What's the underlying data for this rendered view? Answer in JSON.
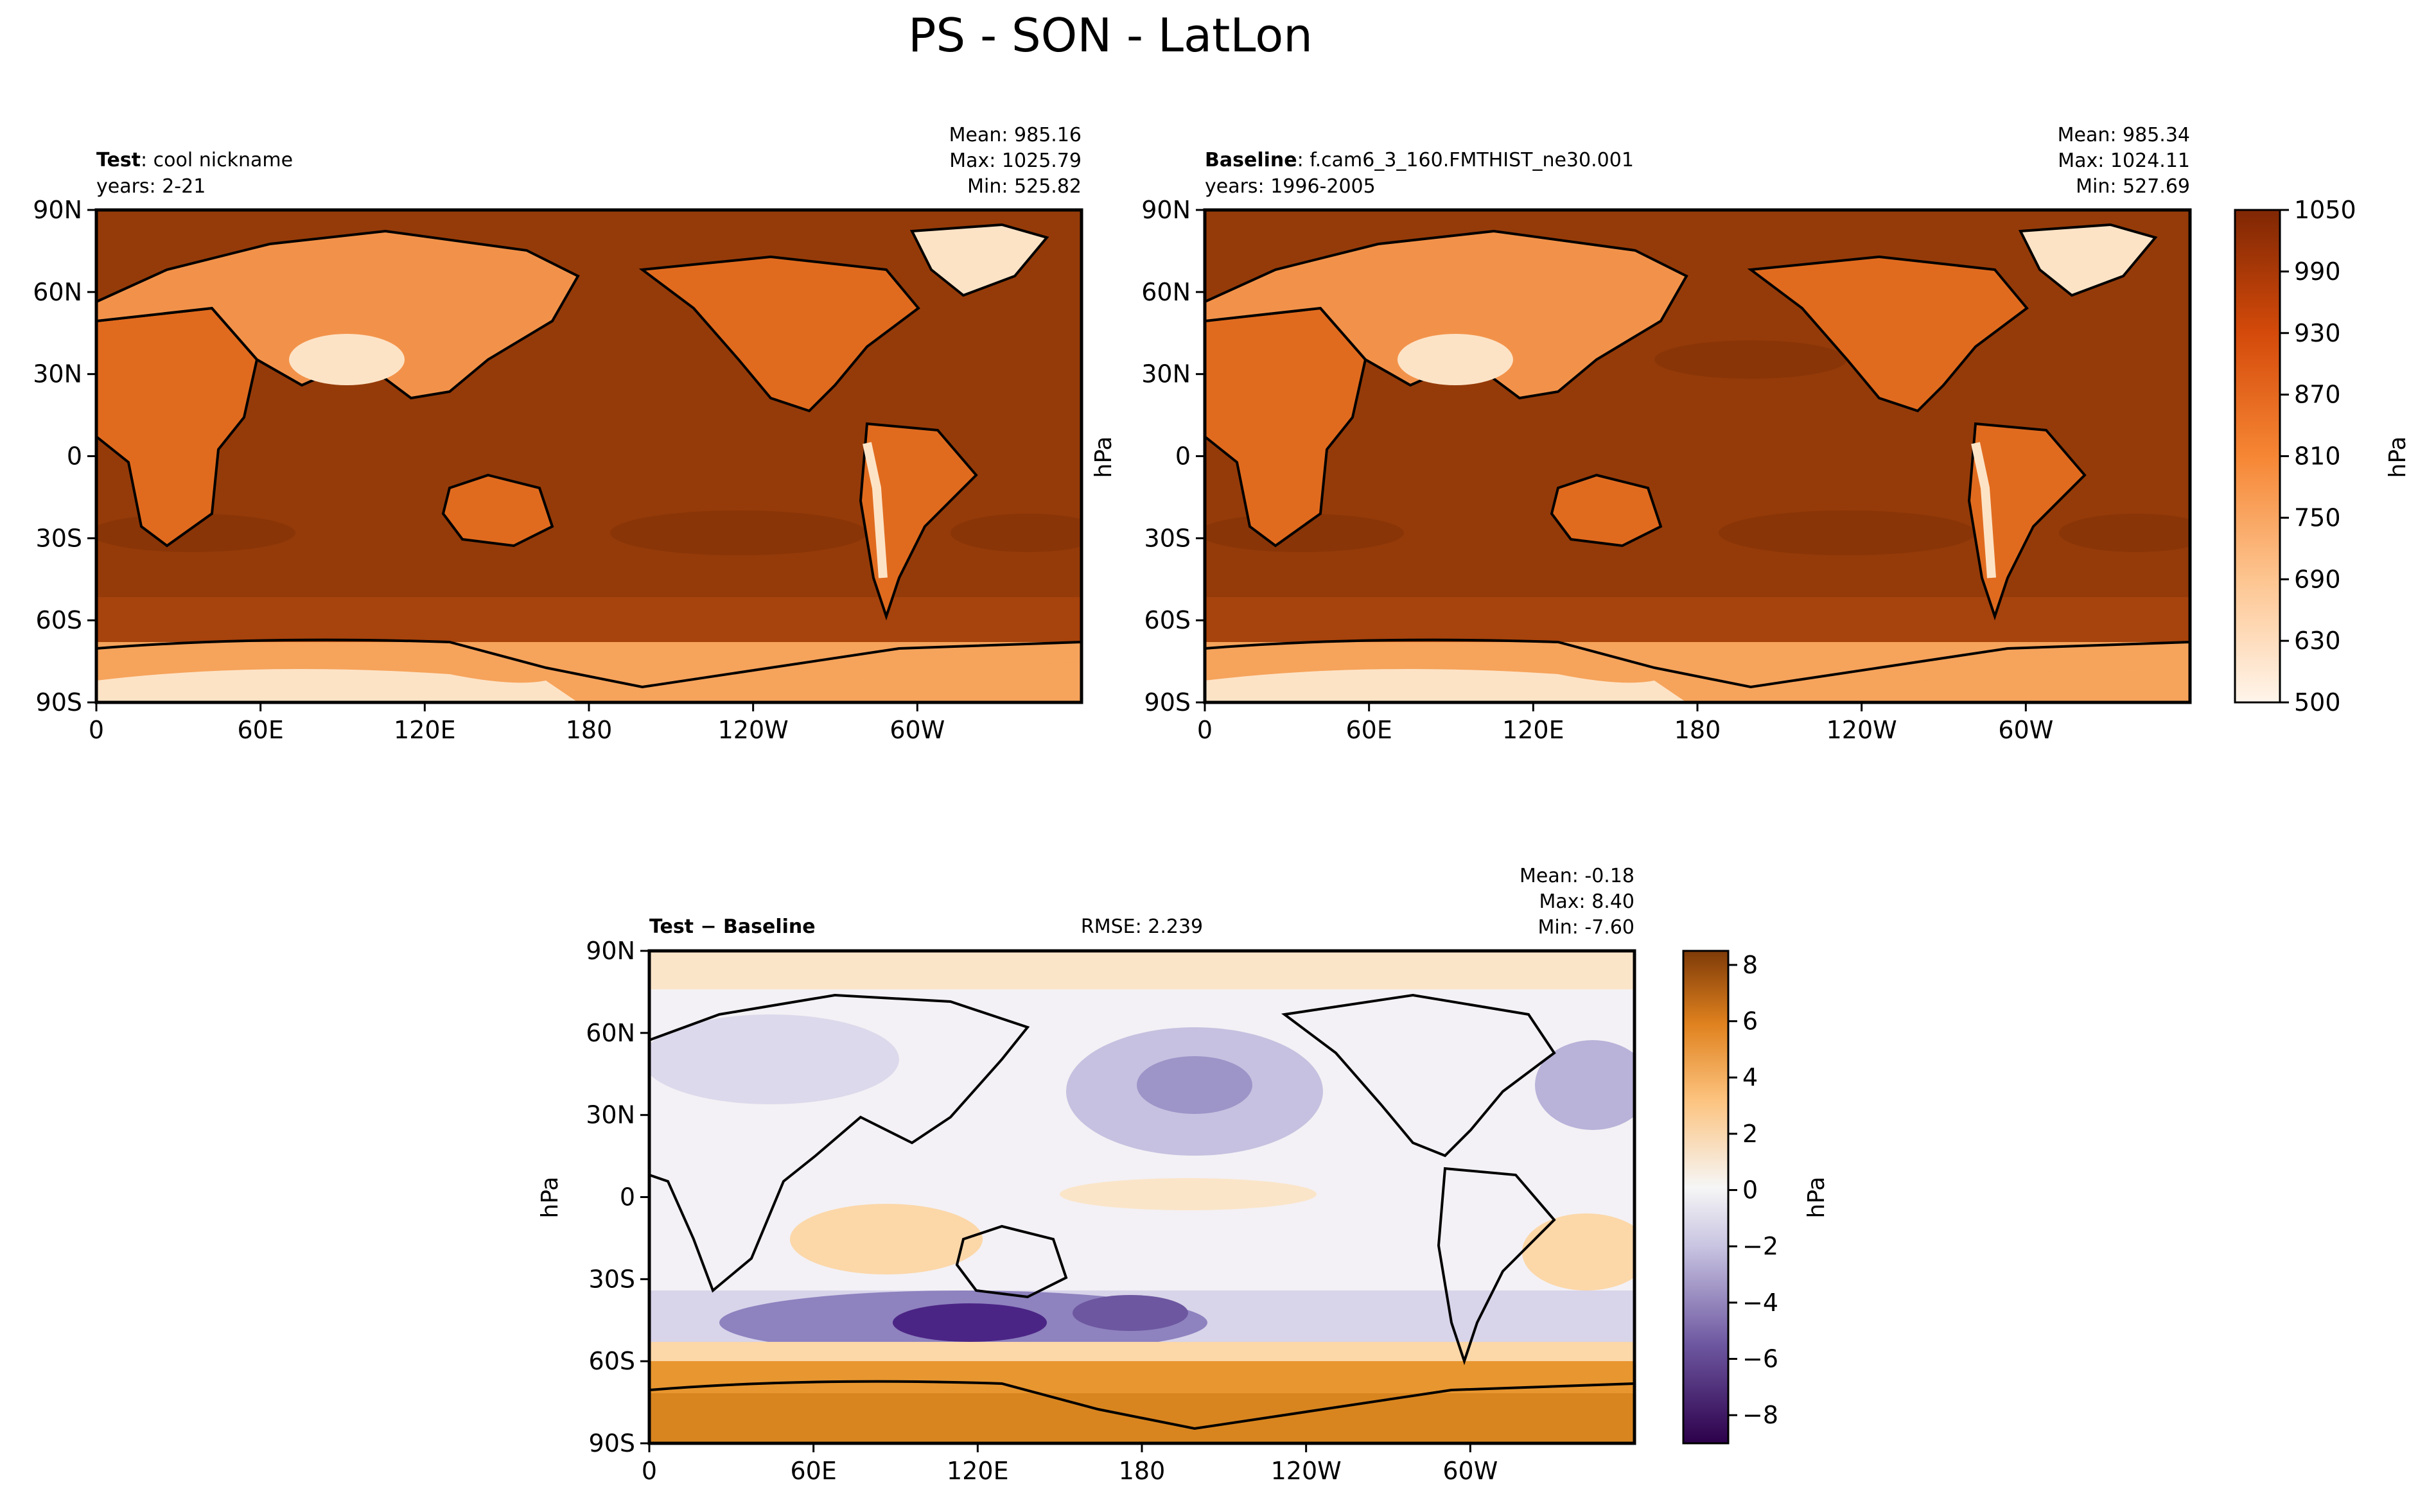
{
  "figure": {
    "title": "PS - SON - LatLon"
  },
  "chart_data": [
    {
      "type": "heatmap",
      "panel": "test",
      "label_bold": "Test",
      "label_rest": ": cool nickname",
      "years": "years: 2-21",
      "stats": {
        "mean": "Mean: 985.16",
        "max": "Max: 1025.79",
        "min": "Min: 525.82"
      },
      "x_ticks": [
        "0",
        "60E",
        "120E",
        "180",
        "120W",
        "60W"
      ],
      "y_ticks": [
        "90N",
        "60N",
        "30N",
        "0",
        "30S",
        "60S",
        "90S"
      ],
      "xlim": [
        0,
        360
      ],
      "ylim": [
        -90,
        90
      ],
      "ylabel": "",
      "colormap": "Oranges"
    },
    {
      "type": "heatmap",
      "panel": "baseline",
      "label_bold": "Baseline",
      "label_rest": ": f.cam6_3_160.FMTHIST_ne30.001",
      "years": "years: 1996-2005",
      "stats": {
        "mean": "Mean: 985.34",
        "max": "Max: 1024.11",
        "min": "Min: 527.69"
      },
      "x_ticks": [
        "0",
        "60E",
        "120E",
        "180",
        "120W",
        "60W"
      ],
      "y_ticks": [
        "90N",
        "60N",
        "30N",
        "0",
        "30S",
        "60S",
        "90S"
      ],
      "xlim": [
        0,
        360
      ],
      "ylim": [
        -90,
        90
      ],
      "ylabel": "hPa",
      "colormap": "Oranges",
      "colorbar": {
        "ticks": [
          "1050",
          "990",
          "930",
          "870",
          "810",
          "750",
          "690",
          "630",
          "500"
        ],
        "label": "hPa",
        "range": [
          500,
          1050
        ]
      }
    },
    {
      "type": "heatmap",
      "panel": "difference",
      "label_bold": "Test − Baseline",
      "rmse": "RMSE: 2.239",
      "stats": {
        "mean": "Mean: -0.18",
        "max": "Max:  8.40",
        "min": "Min: -7.60"
      },
      "x_ticks": [
        "0",
        "60E",
        "120E",
        "180",
        "120W",
        "60W"
      ],
      "y_ticks": [
        "90N",
        "60N",
        "30N",
        "0",
        "30S",
        "60S",
        "90S"
      ],
      "xlim": [
        0,
        360
      ],
      "ylim": [
        -90,
        90
      ],
      "ylabel": "hPa",
      "colormap": "PuOr_r",
      "colorbar": {
        "ticks": [
          "8",
          "6",
          "4",
          "2",
          "0",
          "−2",
          "−4",
          "−6",
          "−8"
        ],
        "label": "hPa",
        "range": [
          -9,
          8.5
        ]
      }
    }
  ],
  "colors": {
    "ocean_fill": "#953b09",
    "southern_band": "#a7430c",
    "land_mid": "#e06b1f",
    "land_high": "#f6a35b",
    "ice": "#fde3c6",
    "diff_neutral": "#f3f1f5",
    "diff_pos": "#f9c27f",
    "diff_pos_strong": "#d8851f",
    "diff_neg": "#c6c1e0",
    "diff_neg_strong": "#4b2585"
  }
}
